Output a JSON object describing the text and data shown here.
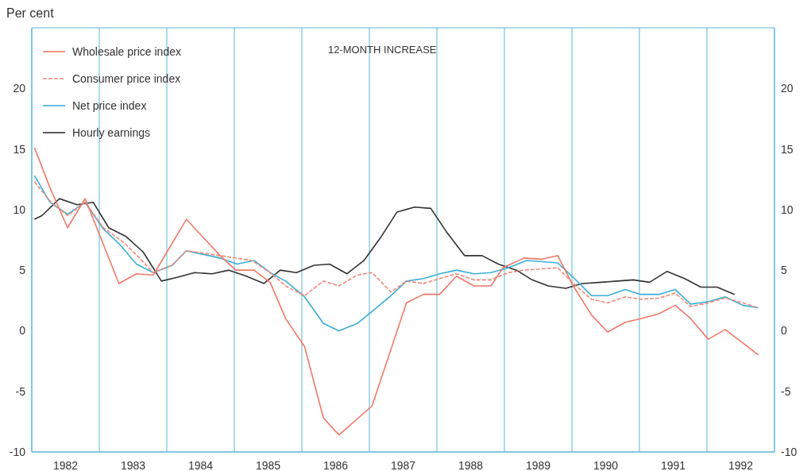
{
  "chart_data": {
    "type": "line",
    "title": "12-MONTH INCREASE",
    "ylabel": "Per cent",
    "xlim": [
      1982,
      1993
    ],
    "xticks": [
      {
        "value": 1982,
        "label": null
      },
      {
        "value": 1982.5,
        "label": "1982"
      },
      {
        "value": 1983,
        "label": null
      },
      {
        "value": 1983.5,
        "label": "1983"
      },
      {
        "value": 1984,
        "label": null
      },
      {
        "value": 1984.5,
        "label": "1984"
      },
      {
        "value": 1985,
        "label": null
      },
      {
        "value": 1985.5,
        "label": "1985"
      },
      {
        "value": 1986,
        "label": null
      },
      {
        "value": 1986.5,
        "label": "1986"
      },
      {
        "value": 1987,
        "label": null
      },
      {
        "value": 1987.5,
        "label": "1987"
      },
      {
        "value": 1988,
        "label": null
      },
      {
        "value": 1988.5,
        "label": "1988"
      },
      {
        "value": 1989,
        "label": null
      },
      {
        "value": 1989.5,
        "label": "1989"
      },
      {
        "value": 1990,
        "label": null
      },
      {
        "value": 1990.5,
        "label": "1990"
      },
      {
        "value": 1991,
        "label": null
      },
      {
        "value": 1991.5,
        "label": "1991"
      },
      {
        "value": 1992,
        "label": null
      },
      {
        "value": 1992.5,
        "label": "1992"
      },
      {
        "value": 1993,
        "label": null
      }
    ],
    "ylim": [
      -10,
      25
    ],
    "yticks": [
      -10,
      -5,
      0,
      5,
      10,
      15,
      20
    ],
    "y2lim": [
      -10,
      25
    ],
    "y2ticks": [
      -10,
      -5,
      0,
      5,
      10,
      15,
      20
    ],
    "grid": true,
    "legend": "top left",
    "marker": "none",
    "line_style": "solid",
    "series": [
      {
        "name": "Wholesale price index",
        "color": "#f07868",
        "x": [
          1982.04,
          1982.27,
          1982.53,
          1982.79,
          1983.02,
          1983.29,
          1983.55,
          1983.8,
          1984.29,
          1984.79,
          1985.02,
          1985.29,
          1985.53,
          1985.76,
          1986.04,
          1986.32,
          1986.55,
          1987.04,
          1987.55,
          1987.8,
          1988.04,
          1988.29,
          1988.55,
          1988.8,
          1988.98,
          1989.29,
          1989.55,
          1989.79,
          1990.02,
          1990.29,
          1990.53,
          1990.79,
          1991.02,
          1991.29,
          1991.53,
          1991.76,
          1992.02,
          1992.27,
          1992.53,
          1992.76
        ],
        "values": [
          15.1,
          11.8,
          8.5,
          10.9,
          7.7,
          3.9,
          4.7,
          4.6,
          9.2,
          6.2,
          5.0,
          5.0,
          4.0,
          1.0,
          -1.3,
          -7.2,
          -8.6,
          -6.2,
          2.3,
          3.0,
          3.0,
          4.5,
          3.7,
          3.7,
          5.2,
          6.0,
          5.9,
          6.2,
          3.7,
          1.3,
          -0.1,
          0.7,
          1.0,
          1.4,
          2.1,
          1.0,
          -0.7,
          0.1,
          -1.0,
          -2.0
        ]
      },
      {
        "name": "Consumer price index",
        "color": "#f08878",
        "line_style": "dashed",
        "x": [
          1982.04,
          1982.27,
          1982.53,
          1982.79,
          1983.06,
          1983.38,
          1983.56,
          1983.8,
          1984.08,
          1984.29,
          1984.79,
          1985.26,
          1985.53,
          1985.76,
          1986.04,
          1986.32,
          1986.55,
          1986.82,
          1987.04,
          1987.32,
          1987.55,
          1987.8,
          1988.04,
          1988.29,
          1988.55,
          1988.8,
          1989.06,
          1989.29,
          1989.79,
          1990.02,
          1990.29,
          1990.53,
          1990.79,
          1991.02,
          1991.29,
          1991.53,
          1991.76,
          1992.02,
          1992.27,
          1992.53,
          1992.76
        ],
        "values": [
          12.3,
          10.7,
          9.5,
          10.6,
          8.5,
          7.2,
          6.2,
          4.8,
          5.4,
          6.6,
          6.2,
          5.8,
          4.8,
          3.7,
          2.9,
          4.1,
          3.7,
          4.6,
          4.8,
          3.2,
          4.1,
          3.9,
          4.3,
          4.7,
          4.2,
          4.2,
          4.8,
          5.0,
          5.2,
          3.9,
          2.6,
          2.3,
          2.8,
          2.6,
          2.7,
          3.1,
          2.0,
          2.3,
          2.7,
          2.3,
          1.9
        ]
      },
      {
        "name": "Net price index",
        "color": "#3aaed8",
        "x": [
          1982.04,
          1982.27,
          1982.53,
          1982.79,
          1983.06,
          1983.29,
          1983.55,
          1983.8,
          1984.08,
          1984.29,
          1984.79,
          1985.04,
          1985.29,
          1985.53,
          1985.76,
          1986.04,
          1986.32,
          1986.55,
          1986.82,
          1987.04,
          1987.32,
          1987.55,
          1987.8,
          1988.04,
          1988.29,
          1988.55,
          1988.8,
          1989.06,
          1989.33,
          1989.79,
          1990.02,
          1990.29,
          1990.53,
          1990.79,
          1991.02,
          1991.29,
          1991.53,
          1991.76,
          1992.02,
          1992.27,
          1992.53,
          1992.76
        ],
        "values": [
          12.8,
          10.6,
          9.6,
          10.6,
          8.4,
          7.2,
          5.5,
          4.8,
          5.4,
          6.6,
          6.0,
          5.5,
          5.8,
          4.8,
          4.1,
          2.8,
          0.6,
          0.0,
          0.6,
          1.6,
          2.9,
          4.1,
          4.3,
          4.7,
          5.0,
          4.7,
          4.8,
          5.2,
          5.8,
          5.6,
          4.4,
          2.9,
          2.9,
          3.4,
          3.0,
          3.0,
          3.4,
          2.2,
          2.4,
          2.8,
          2.1,
          1.9
        ]
      },
      {
        "name": "Hourly earnings",
        "color": "#333333",
        "x": [
          1982.04,
          1982.15,
          1982.41,
          1982.67,
          1982.91,
          1983.14,
          1983.39,
          1983.65,
          1983.92,
          1984.15,
          1984.41,
          1984.67,
          1984.92,
          1985.18,
          1985.44,
          1985.68,
          1985.92,
          1986.18,
          1986.41,
          1986.67,
          1986.92,
          1987.18,
          1987.41,
          1987.67,
          1987.91,
          1988.15,
          1988.41,
          1988.67,
          1988.91,
          1989.18,
          1989.41,
          1989.65,
          1989.91,
          1990.15,
          1990.44,
          1990.67,
          1990.91,
          1991.15,
          1991.41,
          1991.67,
          1991.91,
          1992.15,
          1992.41
        ],
        "values": [
          9.2,
          9.5,
          10.9,
          10.4,
          10.6,
          8.5,
          7.8,
          6.5,
          4.1,
          4.4,
          4.8,
          4.7,
          5.0,
          4.5,
          3.9,
          5.0,
          4.8,
          5.4,
          5.5,
          4.7,
          5.8,
          7.8,
          9.8,
          10.2,
          10.1,
          8.1,
          6.2,
          6.2,
          5.5,
          5.0,
          4.2,
          3.7,
          3.5,
          3.9,
          4.0,
          4.1,
          4.2,
          4.0,
          4.9,
          4.3,
          3.6,
          3.6,
          3.0
        ]
      }
    ]
  }
}
